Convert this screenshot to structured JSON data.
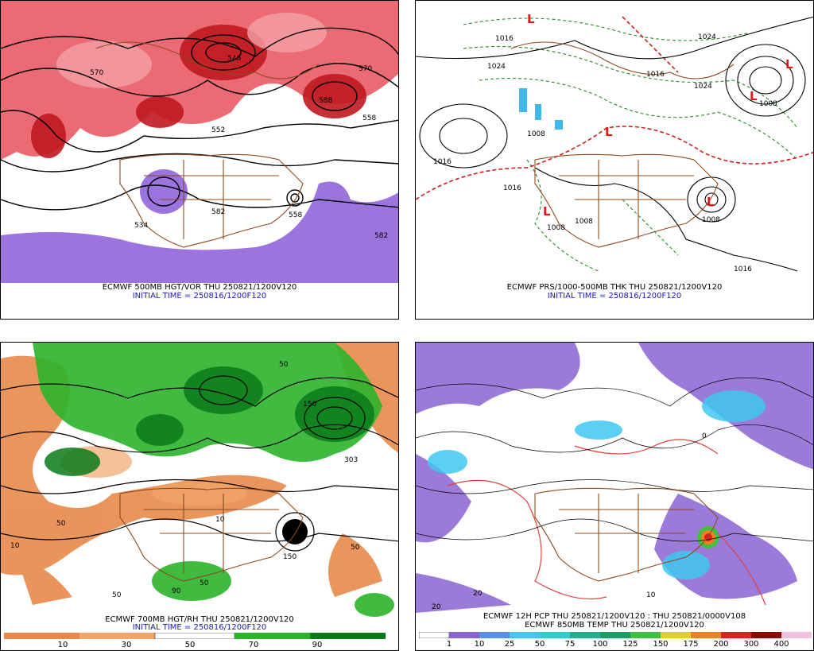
{
  "panels": [
    {
      "title": "ECMWF 500MB HGT/VOR THU 250821/1200V120",
      "init": "INITIAL TIME = 250816/1200F120",
      "contour_labels": [
        "570",
        "546",
        "570",
        "558",
        "552",
        "582",
        "534",
        "582",
        "588",
        "558"
      ]
    },
    {
      "title": "ECMWF PRS/1000-500MB THK THU 250821/1200V120",
      "init": "INITIAL TIME = 250816/1200F120",
      "contour_labels": [
        "1016",
        "1024",
        "1024",
        "1016",
        "1008",
        "1008",
        "1008",
        "1016",
        "1016",
        "1008",
        "1016",
        "1024",
        "1008"
      ],
      "lows": [
        "L",
        "L",
        "L",
        "L",
        "L",
        "L"
      ]
    },
    {
      "title": "ECMWF 700MB HGT/RH THU 250821/1200V120",
      "init": "INITIAL TIME = 250816/1200F120",
      "contour_labels": [
        "150",
        "50",
        "10",
        "50",
        "50",
        "10",
        "50",
        "90",
        "50",
        "150",
        "303"
      ],
      "colorbar": {
        "labels": [
          "10",
          "30",
          "50",
          "70",
          "90"
        ],
        "colors": [
          "#e8894a",
          "#f2a66a",
          "#ffffff",
          "#2bb42b",
          "#0a7a1a"
        ]
      }
    },
    {
      "title": "ECMWF 12H PCP THU 250821/1200V120 : THU 250821/0000V108",
      "subtitle": "ECMWF 850MB TEMP THU 250821/1200V120",
      "contour_labels": [
        "20",
        "10",
        "0",
        "20"
      ],
      "colorbar": {
        "labels": [
          "1",
          "10",
          "25",
          "50",
          "75",
          "100",
          "125",
          "150",
          "175",
          "200",
          "300",
          "400"
        ],
        "colors": [
          "#ffffff",
          "#8a63d2",
          "#5a8ee8",
          "#40c8f0",
          "#2ad0c8",
          "#20b090",
          "#18a060",
          "#40c040",
          "#e0d020",
          "#f08020",
          "#e02020",
          "#900000",
          "#f0c0e0"
        ]
      }
    }
  ]
}
